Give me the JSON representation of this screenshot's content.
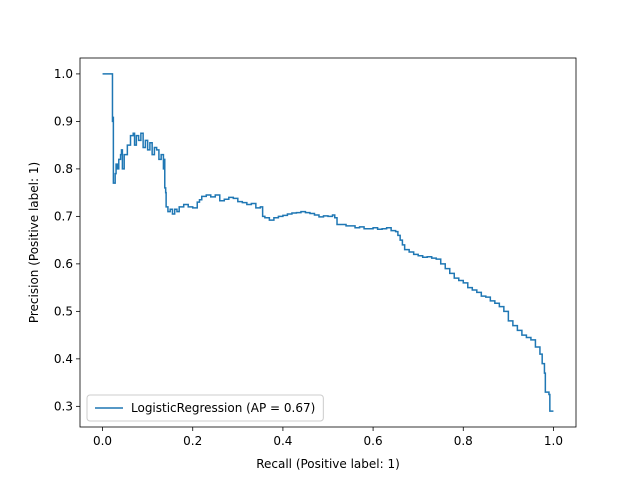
{
  "chart_data": {
    "type": "line",
    "title": "",
    "xlabel": "Recall (Positive label: 1)",
    "ylabel": "Precision (Positive label: 1)",
    "xlim": [
      -0.05,
      1.05
    ],
    "ylim": [
      0.2565,
      1.0335
    ],
    "x_ticks": [
      0.0,
      0.2,
      0.4,
      0.6,
      0.8,
      1.0
    ],
    "x_tick_labels": [
      "0.0",
      "0.2",
      "0.4",
      "0.6",
      "0.8",
      "1.0"
    ],
    "y_ticks": [
      0.3,
      0.4,
      0.5,
      0.6,
      0.7,
      0.8,
      0.9,
      1.0
    ],
    "y_tick_labels": [
      "0.3",
      "0.4",
      "0.5",
      "0.6",
      "0.7",
      "0.8",
      "0.9",
      "1.0"
    ],
    "grid": false,
    "legend_position": "lower-left",
    "series": [
      {
        "name": "LogisticRegression (AP = 0.67)",
        "color": "#1f77b4",
        "step": true,
        "points": [
          [
            0.0,
            1.0
          ],
          [
            0.022,
            1.0
          ],
          [
            0.022,
            0.9
          ],
          [
            0.024,
            0.91
          ],
          [
            0.024,
            0.77
          ],
          [
            0.028,
            0.79
          ],
          [
            0.03,
            0.81
          ],
          [
            0.033,
            0.8
          ],
          [
            0.036,
            0.82
          ],
          [
            0.04,
            0.83
          ],
          [
            0.042,
            0.84
          ],
          [
            0.044,
            0.8
          ],
          [
            0.048,
            0.83
          ],
          [
            0.055,
            0.85
          ],
          [
            0.062,
            0.87
          ],
          [
            0.068,
            0.875
          ],
          [
            0.071,
            0.85
          ],
          [
            0.075,
            0.87
          ],
          [
            0.08,
            0.86
          ],
          [
            0.085,
            0.875
          ],
          [
            0.09,
            0.845
          ],
          [
            0.095,
            0.86
          ],
          [
            0.1,
            0.84
          ],
          [
            0.105,
            0.855
          ],
          [
            0.11,
            0.83
          ],
          [
            0.115,
            0.845
          ],
          [
            0.12,
            0.84
          ],
          [
            0.125,
            0.82
          ],
          [
            0.13,
            0.83
          ],
          [
            0.135,
            0.8
          ],
          [
            0.137,
            0.82
          ],
          [
            0.138,
            0.76
          ],
          [
            0.14,
            0.75
          ],
          [
            0.141,
            0.72
          ],
          [
            0.145,
            0.71
          ],
          [
            0.15,
            0.715
          ],
          [
            0.155,
            0.705
          ],
          [
            0.16,
            0.715
          ],
          [
            0.165,
            0.71
          ],
          [
            0.17,
            0.72
          ],
          [
            0.18,
            0.725
          ],
          [
            0.19,
            0.72
          ],
          [
            0.2,
            0.718
          ],
          [
            0.21,
            0.73
          ],
          [
            0.215,
            0.735
          ],
          [
            0.22,
            0.742
          ],
          [
            0.23,
            0.745
          ],
          [
            0.24,
            0.741
          ],
          [
            0.25,
            0.745
          ],
          [
            0.26,
            0.733
          ],
          [
            0.27,
            0.736
          ],
          [
            0.28,
            0.74
          ],
          [
            0.29,
            0.738
          ],
          [
            0.3,
            0.731
          ],
          [
            0.31,
            0.729
          ],
          [
            0.32,
            0.725
          ],
          [
            0.33,
            0.727
          ],
          [
            0.34,
            0.718
          ],
          [
            0.35,
            0.72
          ],
          [
            0.355,
            0.7
          ],
          [
            0.36,
            0.697
          ],
          [
            0.37,
            0.692
          ],
          [
            0.38,
            0.697
          ],
          [
            0.39,
            0.7
          ],
          [
            0.4,
            0.702
          ],
          [
            0.41,
            0.705
          ],
          [
            0.42,
            0.707
          ],
          [
            0.43,
            0.708
          ],
          [
            0.44,
            0.71
          ],
          [
            0.45,
            0.708
          ],
          [
            0.46,
            0.706
          ],
          [
            0.47,
            0.703
          ],
          [
            0.48,
            0.699
          ],
          [
            0.49,
            0.701
          ],
          [
            0.5,
            0.7
          ],
          [
            0.51,
            0.703
          ],
          [
            0.515,
            0.697
          ],
          [
            0.52,
            0.683
          ],
          [
            0.54,
            0.68
          ],
          [
            0.56,
            0.676
          ],
          [
            0.57,
            0.678
          ],
          [
            0.58,
            0.674
          ],
          [
            0.6,
            0.676
          ],
          [
            0.61,
            0.673
          ],
          [
            0.62,
            0.674
          ],
          [
            0.63,
            0.676
          ],
          [
            0.64,
            0.67
          ],
          [
            0.65,
            0.668
          ],
          [
            0.655,
            0.66
          ],
          [
            0.66,
            0.65
          ],
          [
            0.665,
            0.64
          ],
          [
            0.67,
            0.63
          ],
          [
            0.68,
            0.625
          ],
          [
            0.69,
            0.62
          ],
          [
            0.7,
            0.617
          ],
          [
            0.71,
            0.614
          ],
          [
            0.72,
            0.615
          ],
          [
            0.73,
            0.612
          ],
          [
            0.74,
            0.61
          ],
          [
            0.75,
            0.6
          ],
          [
            0.76,
            0.59
          ],
          [
            0.77,
            0.58
          ],
          [
            0.78,
            0.57
          ],
          [
            0.79,
            0.565
          ],
          [
            0.8,
            0.56
          ],
          [
            0.81,
            0.55
          ],
          [
            0.82,
            0.545
          ],
          [
            0.83,
            0.54
          ],
          [
            0.84,
            0.532
          ],
          [
            0.85,
            0.53
          ],
          [
            0.86,
            0.522
          ],
          [
            0.87,
            0.517
          ],
          [
            0.88,
            0.51
          ],
          [
            0.89,
            0.5
          ],
          [
            0.9,
            0.48
          ],
          [
            0.91,
            0.47
          ],
          [
            0.92,
            0.46
          ],
          [
            0.93,
            0.45
          ],
          [
            0.94,
            0.445
          ],
          [
            0.95,
            0.44
          ],
          [
            0.96,
            0.425
          ],
          [
            0.97,
            0.41
          ],
          [
            0.975,
            0.39
          ],
          [
            0.98,
            0.37
          ],
          [
            0.982,
            0.33
          ],
          [
            0.99,
            0.325
          ],
          [
            0.992,
            0.29
          ],
          [
            1.0,
            0.29
          ]
        ]
      }
    ]
  }
}
